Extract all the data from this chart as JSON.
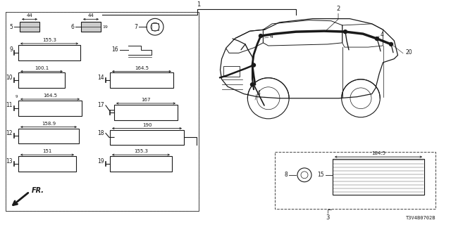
{
  "bg_color": "#ffffff",
  "line_color": "#1a1a1a",
  "dashed_color": "#444444",
  "diagram_id": "T3V4B0702B"
}
